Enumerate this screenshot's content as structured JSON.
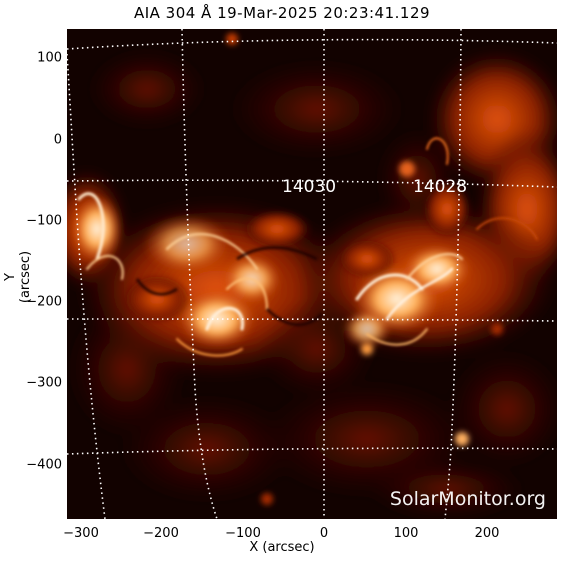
{
  "title": "AIA 304 Å 19-Mar-2025  20:23:41.129",
  "axes": {
    "xlabel": "X (arcsec)",
    "ylabel": "Y (arcsec)",
    "xticks": [
      "−300",
      "−200",
      "−100",
      "0",
      "100",
      "200"
    ],
    "yticks": [
      "100",
      "0",
      "−100",
      "−200",
      "−300",
      "−400"
    ]
  },
  "regions": [
    {
      "id": "14030",
      "label": "14030"
    },
    {
      "id": "14028",
      "label": "14028"
    }
  ],
  "watermark": "SolarMonitor.org",
  "colors": {
    "background": "#120200",
    "dark": "#3a0700",
    "mid": "#a32a00",
    "bright": "#f26a10",
    "hot": "#ffd6a0",
    "white": "#ffffff"
  }
}
